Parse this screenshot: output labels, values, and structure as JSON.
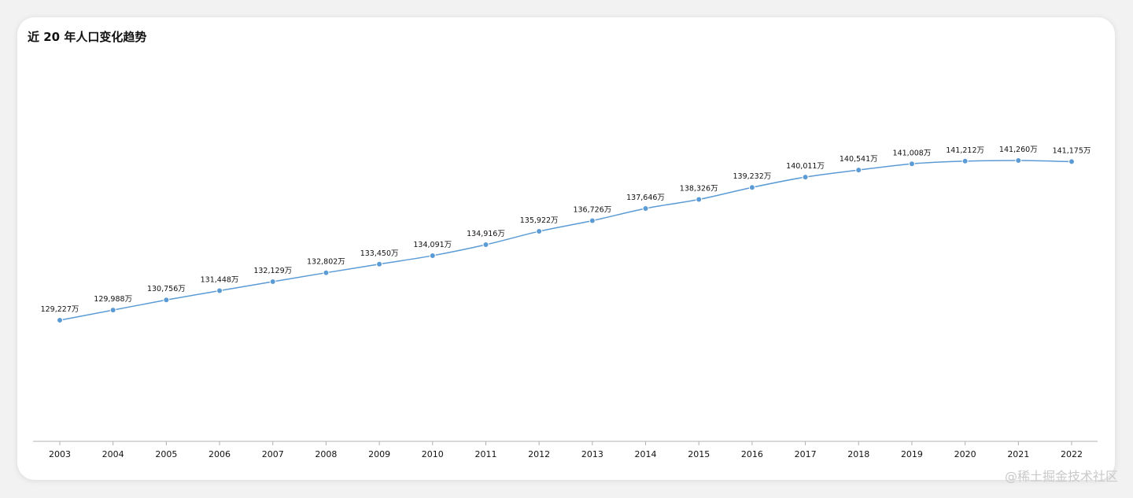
{
  "watermark": "@稀土掘金技术社区",
  "colors": {
    "line": "#5b9bd5",
    "point": "#5b9bd5",
    "axis": "#b0b0b0",
    "label": "#111111",
    "background": "#ffffff"
  },
  "chart_data": {
    "type": "line",
    "title": "近 20 年人口变化趋势",
    "xlabel": "",
    "ylabel": "",
    "categories": [
      "2003",
      "2004",
      "2005",
      "2006",
      "2007",
      "2008",
      "2009",
      "2010",
      "2011",
      "2012",
      "2013",
      "2014",
      "2015",
      "2016",
      "2017",
      "2018",
      "2019",
      "2020",
      "2021",
      "2022"
    ],
    "series": [
      {
        "values": [
          129227,
          129988,
          130756,
          131448,
          132129,
          132802,
          133450,
          134091,
          134916,
          135922,
          136726,
          137646,
          138326,
          139232,
          140011,
          140541,
          141008,
          141212,
          141260,
          141175
        ]
      }
    ],
    "data_labels": [
      "129,227万",
      "129,988万",
      "130,756万",
      "131,448万",
      "132,129万",
      "132,802万",
      "133,450万",
      "134,091万",
      "134,916万",
      "135,922万",
      "136,726万",
      "137,646万",
      "138,326万",
      "139,232万",
      "140,011万",
      "140,541万",
      "141,008万",
      "141,212万",
      "141,260万",
      "141,175万"
    ],
    "y_axis_visible": false,
    "grid": false,
    "legend": "none",
    "smooth": true
  }
}
